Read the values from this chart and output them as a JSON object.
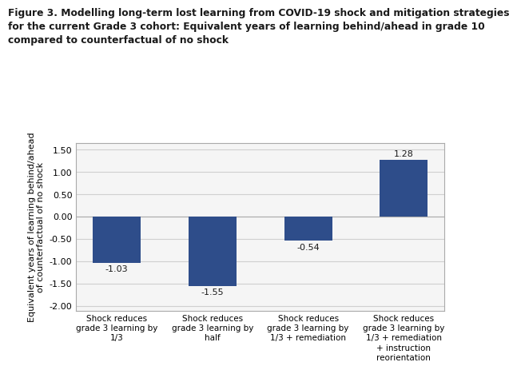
{
  "title_line1": "Figure 3. Modelling long-term lost learning from COVID-19 shock and mitigation strategies",
  "title_line2": "for the current Grade 3 cohort: Equivalent years of learning behind/ahead in grade 10",
  "title_line3": "compared to counterfactual of no shock",
  "ylabel": "Equivalent years of learning behind/ahead\nof counterfactual of no shock",
  "categories": [
    "Shock reduces\ngrade 3 learning by\n1/3",
    "Shock reduces\ngrade 3 learning by\nhalf",
    "Shock reduces\ngrade 3 learning by\n1/3 + remediation",
    "Shock reduces\ngrade 3 learning by\n1/3 + remediation\n+ instruction\nreorientation"
  ],
  "values": [
    -1.03,
    -1.55,
    -0.54,
    1.28
  ],
  "bar_color": "#2E4D8A",
  "ylim": [
    -2.1,
    1.65
  ],
  "yticks": [
    -2.0,
    -1.5,
    -1.0,
    -0.5,
    0.0,
    0.5,
    1.0,
    1.5
  ],
  "ytick_labels": [
    "-2.00",
    "-1.50",
    "-1.00",
    "-0.50",
    "0.00",
    "0.50",
    "1.00",
    "1.50"
  ],
  "background_color": "#ffffff",
  "chart_bg": "#f5f5f5",
  "title_fontsize": 8.8,
  "ylabel_fontsize": 8.0,
  "xtick_fontsize": 7.5,
  "ytick_fontsize": 8.0,
  "value_label_fontsize": 8.0,
  "title_color": "#1a1a1a",
  "bar_value_color": "#1a1a1a",
  "grid_color": "#d0d0d0",
  "spine_color": "#aaaaaa"
}
